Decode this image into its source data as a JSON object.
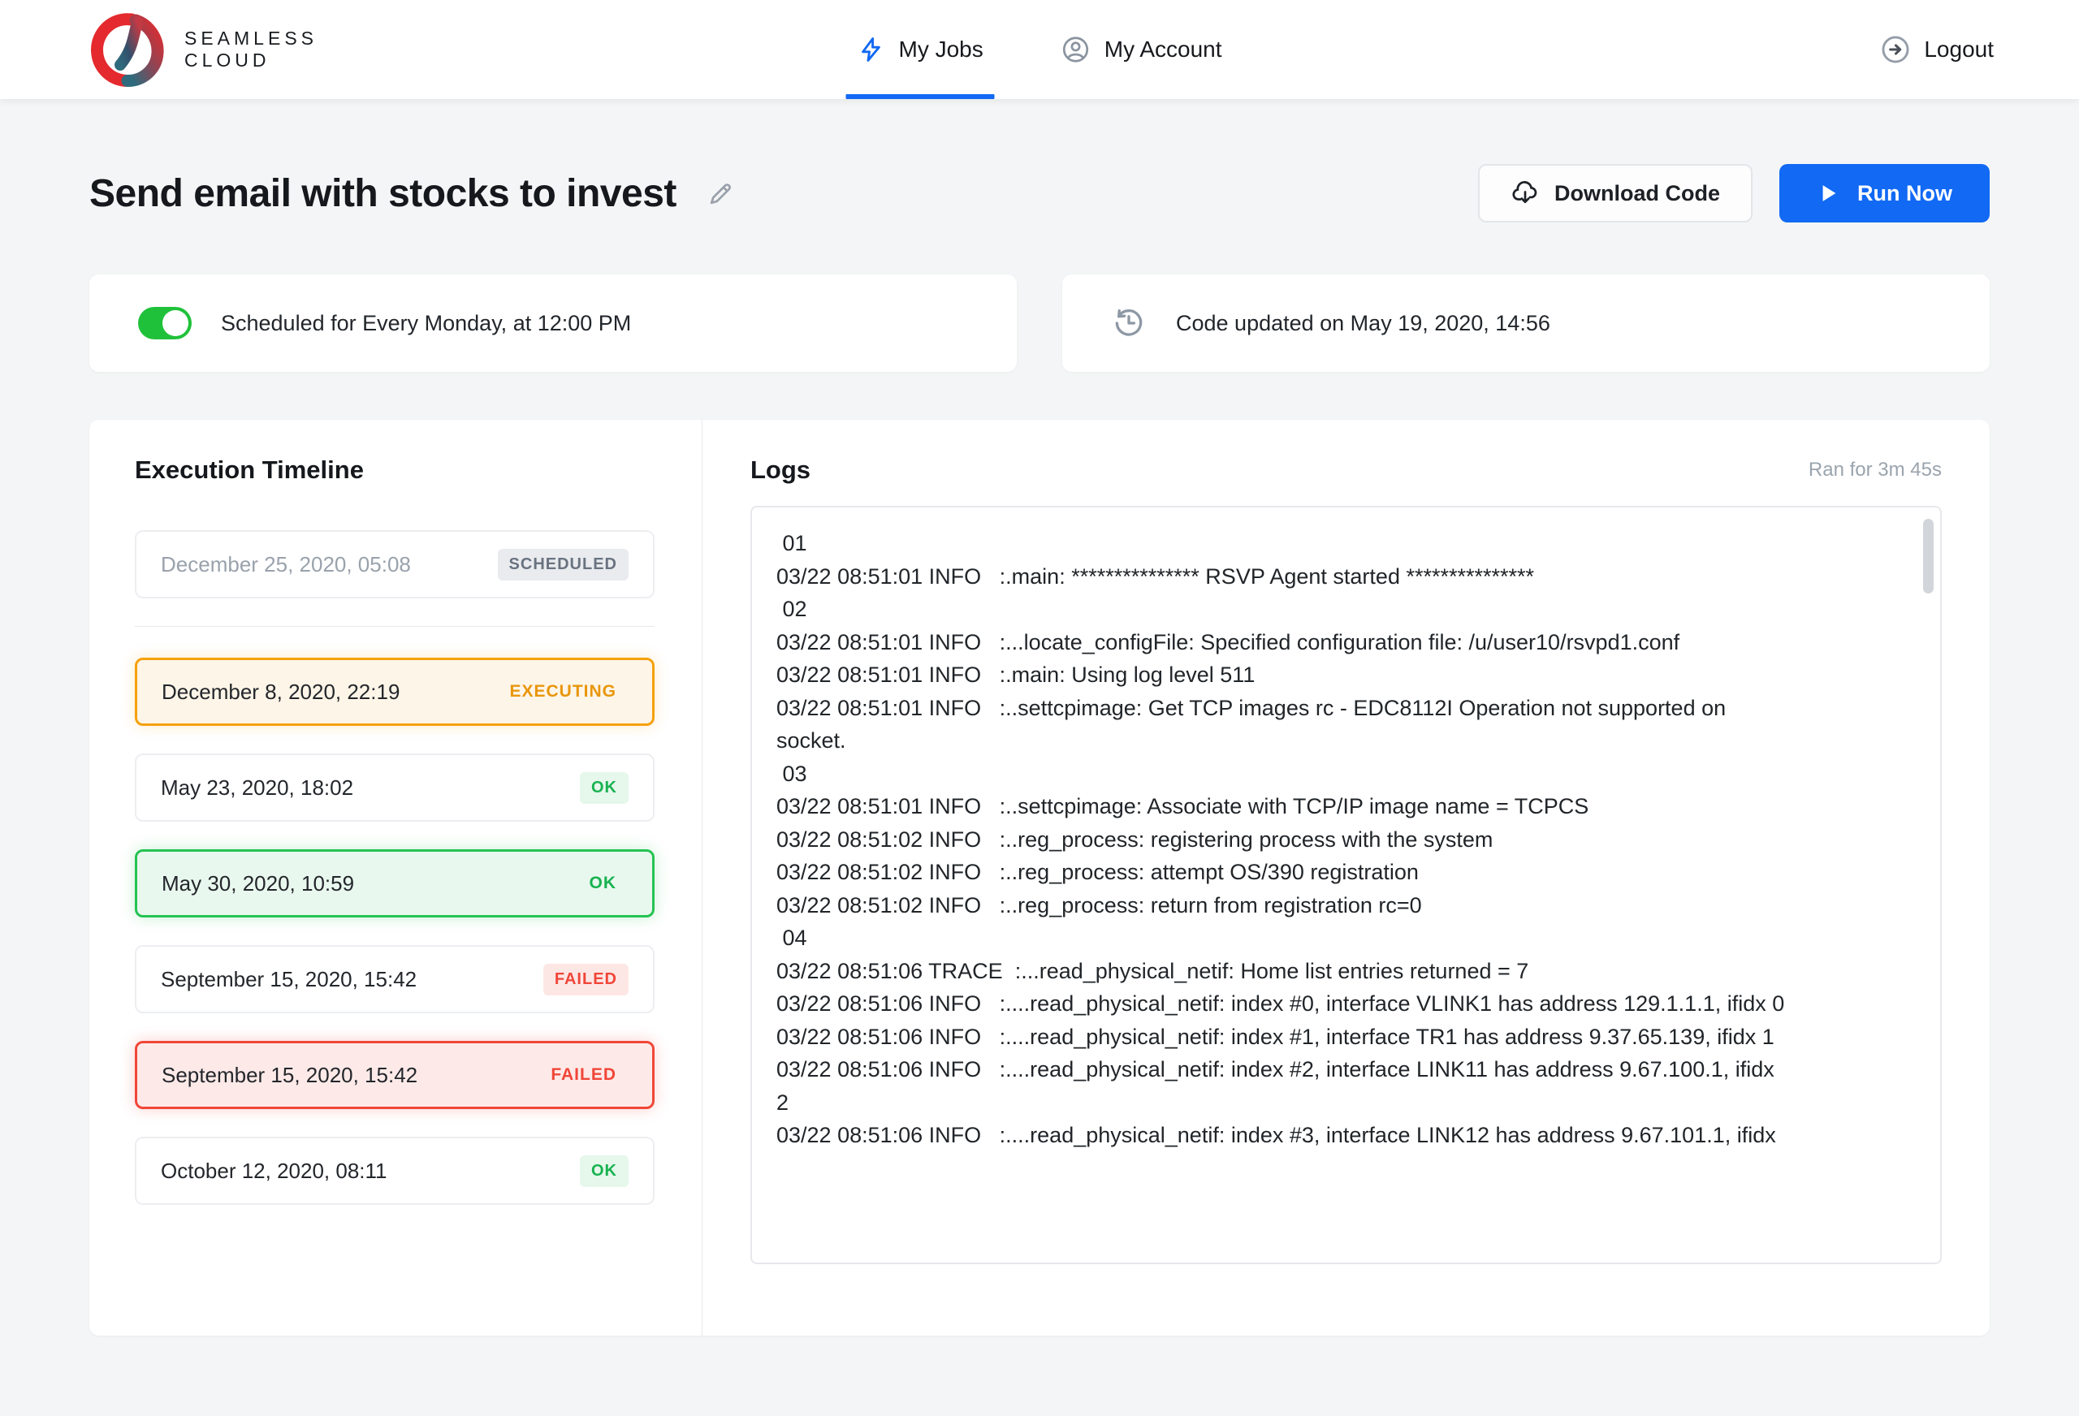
{
  "brand": {
    "line1": "SEAMLESS",
    "line2": "CLOUD"
  },
  "nav": {
    "my_jobs": "My Jobs",
    "my_account": "My Account",
    "logout": "Logout"
  },
  "page": {
    "title": "Send email with stocks to invest"
  },
  "actions": {
    "download_code": "Download Code",
    "run_now": "Run Now"
  },
  "schedule": {
    "enabled": true,
    "text": "Scheduled for Every Monday, at 12:00 PM"
  },
  "code_updated": {
    "text": "Code updated on May 19, 2020, 14:56"
  },
  "timeline": {
    "title": "Execution Timeline",
    "entries": [
      {
        "date": "December 25, 2020, 05:08",
        "status": "SCHEDULED",
        "variant": "scheduled",
        "divider_after": true
      },
      {
        "date": "December 8, 2020, 22:19",
        "status": "EXECUTING",
        "variant": "executing-active"
      },
      {
        "date": "May 23, 2020, 18:02",
        "status": "OK",
        "variant": "ok"
      },
      {
        "date": "May 30, 2020, 10:59",
        "status": "OK",
        "variant": "ok-active"
      },
      {
        "date": "September 15, 2020, 15:42",
        "status": "FAILED",
        "variant": "failed"
      },
      {
        "date": "September 15, 2020, 15:42",
        "status": "FAILED",
        "variant": "failed-active"
      },
      {
        "date": "October 12, 2020, 08:11",
        "status": "OK",
        "variant": "ok"
      }
    ]
  },
  "logs": {
    "title": "Logs",
    "ran_for": "Ran for 3m 45s",
    "lines": [
      " 01",
      "03/22 08:51:01 INFO   :.main: *************** RSVP Agent started ***************",
      " 02",
      "03/22 08:51:01 INFO   :...locate_configFile: Specified configuration file: /u/user10/rsvpd1.conf",
      "03/22 08:51:01 INFO   :.main: Using log level 511",
      "03/22 08:51:01 INFO   :..settcpimage: Get TCP images rc - EDC8112I Operation not supported on",
      "socket.",
      " 03",
      "03/22 08:51:01 INFO   :..settcpimage: Associate with TCP/IP image name = TCPCS",
      "03/22 08:51:02 INFO   :..reg_process: registering process with the system",
      "03/22 08:51:02 INFO   :..reg_process: attempt OS/390 registration",
      "03/22 08:51:02 INFO   :..reg_process: return from registration rc=0",
      " 04",
      "03/22 08:51:06 TRACE  :...read_physical_netif: Home list entries returned = 7",
      "03/22 08:51:06 INFO   :....read_physical_netif: index #0, interface VLINK1 has address 129.1.1.1, ifidx 0",
      "03/22 08:51:06 INFO   :....read_physical_netif: index #1, interface TR1 has address 9.37.65.139, ifidx 1",
      "03/22 08:51:06 INFO   :....read_physical_netif: index #2, interface LINK11 has address 9.67.100.1, ifidx",
      "2",
      "03/22 08:51:06 INFO   :....read_physical_netif: index #3, interface LINK12 has address 9.67.101.1, ifidx"
    ]
  },
  "icons": {
    "nav_my_jobs": "bolt-icon",
    "nav_my_account": "user-circle-icon",
    "logout": "arrow-right-circle-icon",
    "edit_title": "pencil-icon",
    "download": "cloud-download-icon",
    "run": "play-icon",
    "code_updated": "history-clock-icon"
  },
  "colors": {
    "accent_blue": "#1169f4",
    "toggle_green": "#20c13a",
    "ok_green": "#17b350",
    "executing_orange": "#e8960c",
    "executing_border": "#f5a10c",
    "failed_red": "#f04638",
    "scheduled_gray": "#697380",
    "page_background": "#f4f5f6"
  }
}
